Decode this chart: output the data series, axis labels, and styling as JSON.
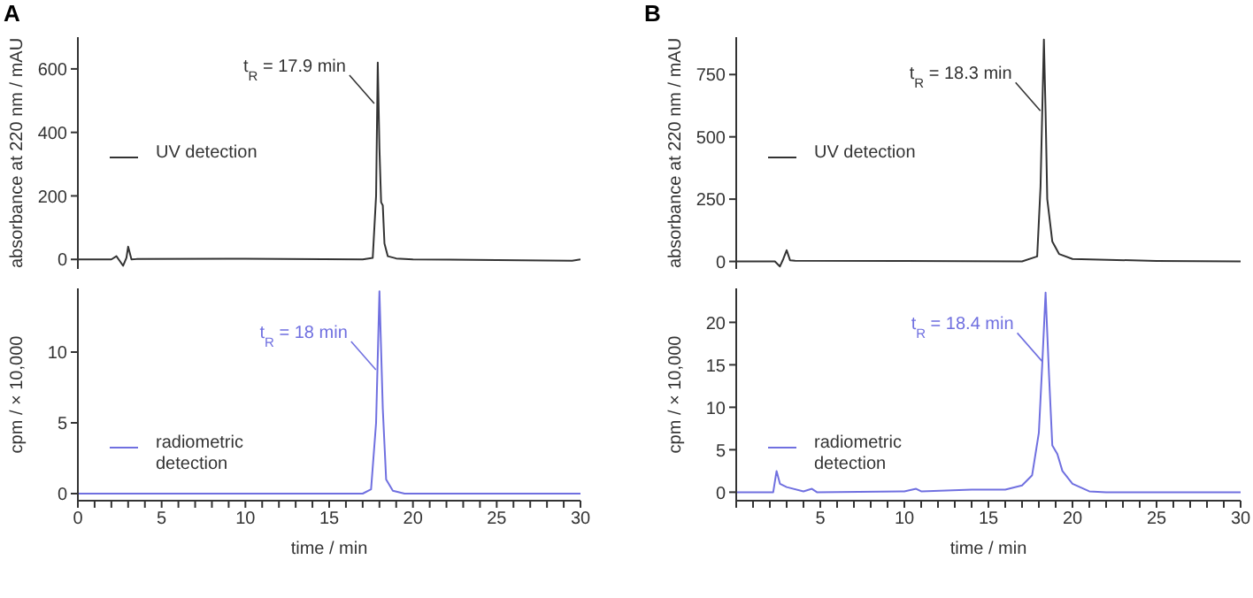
{
  "chart_data": [
    {
      "type": "line",
      "title": "A",
      "ylabel": "absorbance at 220 nm / mAU",
      "xlim": [
        0,
        30
      ],
      "ylim": [
        -30,
        700
      ],
      "yticks": [
        0,
        200,
        400,
        600
      ],
      "tick_labels": "y",
      "legend": "left",
      "grid": false,
      "marker": "none",
      "line_style": "solid",
      "annotations": [
        {
          "text": "t$_{R}$ = 17.9 min",
          "x": 17.9,
          "y": 480
        }
      ],
      "series": [
        {
          "name": "UV detection",
          "color": "#333333",
          "x": [
            0,
            2,
            2.3,
            2.5,
            2.7,
            2.9,
            3.0,
            3.2,
            3.5,
            10,
            17,
            17.6,
            17.8,
            17.9,
            18.0,
            18.1,
            18.2,
            18.3,
            18.5,
            19,
            20,
            25,
            29.5,
            30
          ],
          "values": [
            0,
            0,
            10,
            -5,
            -20,
            5,
            40,
            0,
            1,
            2,
            0,
            5,
            200,
            620,
            350,
            180,
            170,
            50,
            10,
            3,
            0,
            -2,
            -4,
            0
          ]
        }
      ]
    },
    {
      "type": "line",
      "ylabel": "cpm / × 10,000",
      "xlabel": "time / min",
      "xlim": [
        0,
        30
      ],
      "ylim": [
        -0.5,
        14.5
      ],
      "yticks": [
        0,
        5,
        10
      ],
      "legend": "left",
      "grid": false,
      "marker": "none",
      "line_style": "solid",
      "xticks": [
        0,
        {
          "value": 1,
          "label": null
        },
        {
          "value": 2,
          "label": null
        },
        {
          "value": 3,
          "label": null
        },
        {
          "value": 4,
          "label": null
        },
        5,
        {
          "value": 6,
          "label": null
        },
        {
          "value": 7,
          "label": null
        },
        {
          "value": 8,
          "label": null
        },
        {
          "value": 9,
          "label": null
        },
        10,
        {
          "value": 11,
          "label": null
        },
        {
          "value": 12,
          "label": null
        },
        {
          "value": 13,
          "label": null
        },
        {
          "value": 14,
          "label": null
        },
        15,
        {
          "value": 16,
          "label": null
        },
        {
          "value": 17,
          "label": null
        },
        {
          "value": 18,
          "label": null
        },
        {
          "value": 19,
          "label": null
        },
        20,
        {
          "value": 21,
          "label": null
        },
        {
          "value": 22,
          "label": null
        },
        {
          "value": 23,
          "label": null
        },
        {
          "value": 24,
          "label": null
        },
        25,
        {
          "value": 26,
          "label": null
        },
        {
          "value": 27,
          "label": null
        },
        {
          "value": 28,
          "label": null
        },
        {
          "value": 29,
          "label": null
        },
        30
      ],
      "annotations": [
        {
          "text": "t$_{R}$ = 18 min",
          "x": 18,
          "y": 8.5
        }
      ],
      "series": [
        {
          "name": "radiometric detection",
          "color": "#7070e0",
          "x": [
            0,
            17,
            17.5,
            17.8,
            18.0,
            18.2,
            18.4,
            18.8,
            19.5,
            30
          ],
          "values": [
            0,
            0,
            0.3,
            5,
            14.3,
            6,
            1,
            0.2,
            0,
            0
          ]
        }
      ]
    },
    {
      "type": "line",
      "title": "B",
      "ylabel": "absorbance at 220 nm / mAU",
      "xlim": [
        0,
        30
      ],
      "ylim": [
        -30,
        900
      ],
      "yticks": [
        0,
        250,
        500,
        750
      ],
      "tick_labels": "y",
      "legend": "left",
      "grid": false,
      "marker": "none",
      "line_style": "solid",
      "annotations": [
        {
          "text": "t$_{R}$ = 18.3 min",
          "x": 18.3,
          "y": 590
        }
      ],
      "series": [
        {
          "name": "UV detection",
          "color": "#333333",
          "x": [
            0,
            2.3,
            2.6,
            2.8,
            3.0,
            3.2,
            3.5,
            10,
            17,
            17.9,
            18.1,
            18.3,
            18.4,
            18.5,
            18.8,
            19.2,
            20,
            25,
            30
          ],
          "values": [
            0,
            0,
            -20,
            10,
            45,
            5,
            3,
            2,
            0,
            20,
            300,
            890,
            600,
            250,
            80,
            30,
            10,
            2,
            0
          ]
        }
      ]
    },
    {
      "type": "line",
      "ylabel": "cpm / × 10,000",
      "xlabel": "time / min",
      "xlim": [
        0,
        30
      ],
      "ylim": [
        -1,
        24
      ],
      "yticks": [
        0,
        5,
        10,
        15,
        20
      ],
      "legend": "left",
      "grid": false,
      "marker": "none",
      "line_style": "solid",
      "xticks": [
        {
          "value": 0,
          "label": null
        },
        {
          "value": 1,
          "label": null
        },
        {
          "value": 2,
          "label": null
        },
        {
          "value": 3,
          "label": null
        },
        {
          "value": 4,
          "label": null
        },
        5,
        {
          "value": 6,
          "label": null
        },
        {
          "value": 7,
          "label": null
        },
        {
          "value": 8,
          "label": null
        },
        {
          "value": 9,
          "label": null
        },
        10,
        {
          "value": 11,
          "label": null
        },
        {
          "value": 12,
          "label": null
        },
        {
          "value": 13,
          "label": null
        },
        {
          "value": 14,
          "label": null
        },
        15,
        {
          "value": 16,
          "label": null
        },
        {
          "value": 17,
          "label": null
        },
        {
          "value": 18,
          "label": null
        },
        {
          "value": 19,
          "label": null
        },
        20,
        {
          "value": 21,
          "label": null
        },
        {
          "value": 22,
          "label": null
        },
        {
          "value": 23,
          "label": null
        },
        {
          "value": 24,
          "label": null
        },
        25,
        {
          "value": 26,
          "label": null
        },
        {
          "value": 27,
          "label": null
        },
        {
          "value": 28,
          "label": null
        },
        {
          "value": 29,
          "label": null
        },
        30
      ],
      "annotations": [
        {
          "text": "t$_{R}$ = 18.4 min",
          "x": 18.4,
          "y": 15
        }
      ],
      "series": [
        {
          "name": "radiometric detection",
          "color": "#7070e0",
          "x": [
            0,
            2.2,
            2.4,
            2.6,
            3,
            4,
            4.5,
            4.8,
            10,
            10.7,
            11,
            14,
            16,
            17,
            17.6,
            18,
            18.2,
            18.4,
            18.6,
            18.8,
            19.1,
            19.4,
            20,
            21,
            22,
            30
          ],
          "values": [
            0,
            0,
            2.5,
            1,
            0.6,
            0.1,
            0.4,
            0,
            0.1,
            0.4,
            0.1,
            0.3,
            0.3,
            0.8,
            2,
            7,
            15,
            23.5,
            14,
            5.5,
            4.5,
            2.5,
            1,
            0.1,
            0,
            0
          ]
        }
      ]
    }
  ]
}
